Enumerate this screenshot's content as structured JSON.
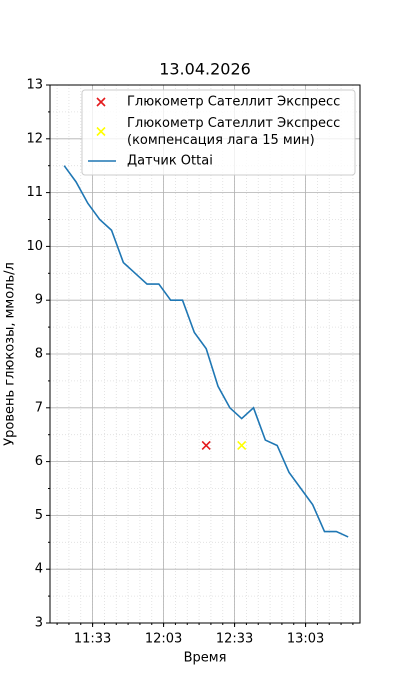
{
  "chart_data": {
    "type": "line",
    "title": "13.04.2026",
    "x_label": "Время",
    "y_label": "Уровень глюкозы, ммоль/л",
    "xlim": [
      "11:15",
      "13:26"
    ],
    "xticks": [
      "11:33",
      "12:03",
      "12:33",
      "13:03"
    ],
    "ylim": [
      3,
      13
    ],
    "yticks": [
      3,
      4,
      5,
      6,
      7,
      8,
      9,
      10,
      11,
      12,
      13
    ],
    "grid": true,
    "minor_grid": true,
    "legend": "upper right",
    "series": [
      {
        "name": "Глюкометр Сателлит Экспресс",
        "kind": "scatter",
        "color": "#e41a1c",
        "x": [
          "12:21"
        ],
        "values": [
          6.3
        ]
      },
      {
        "name": "Глюкометр Сателлит Экспресс\n(компенсация лага 15 мин)",
        "kind": "scatter",
        "color": "#ffff00",
        "x": [
          "12:36"
        ],
        "values": [
          6.3
        ]
      },
      {
        "name": "Датчик Ottai",
        "kind": "line",
        "color": "#1f77b4",
        "x": [
          "11:21",
          "11:26",
          "11:31",
          "11:36",
          "11:41",
          "11:46",
          "11:51",
          "11:56",
          "12:01",
          "12:06",
          "12:11",
          "12:16",
          "12:21",
          "12:26",
          "12:31",
          "12:36",
          "12:41",
          "12:46",
          "12:51",
          "12:56",
          "13:01",
          "13:06",
          "13:11",
          "13:16",
          "13:21"
        ],
        "values": [
          11.5,
          11.2,
          10.8,
          10.5,
          10.3,
          9.7,
          9.5,
          9.3,
          9.3,
          9.0,
          9.0,
          8.4,
          8.1,
          7.4,
          7.0,
          6.8,
          7.0,
          6.4,
          6.3,
          5.8,
          5.5,
          5.2,
          4.7,
          4.7,
          4.6
        ]
      }
    ]
  }
}
